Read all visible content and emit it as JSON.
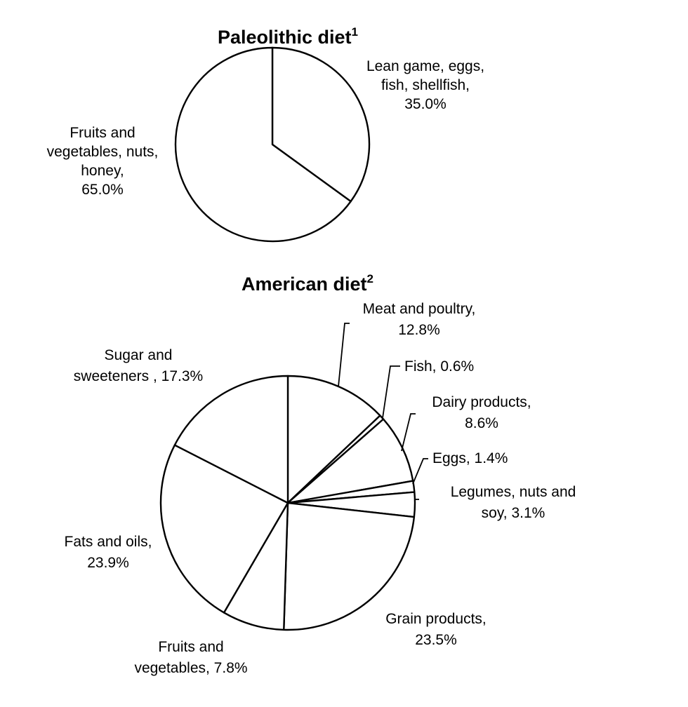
{
  "chart_data": [
    {
      "type": "pie",
      "title": "Paleolithic diet",
      "title_superscript": "1",
      "slices": [
        {
          "label_lines": [
            "Lean game, eggs,",
            "fish, shellfish,",
            "35.0%"
          ],
          "value": 35.0
        },
        {
          "label_lines": [
            "Fruits and",
            "vegetables, nuts,",
            "honey,",
            "65.0%"
          ],
          "value": 65.0
        }
      ]
    },
    {
      "type": "pie",
      "title": "American diet",
      "title_superscript": "2",
      "slices": [
        {
          "label_lines": [
            "Meat and poultry,",
            "12.8%"
          ],
          "value": 12.8
        },
        {
          "label_lines": [
            "Fish, 0.6%"
          ],
          "value": 0.6
        },
        {
          "label_lines": [
            "Dairy products,",
            "8.6%"
          ],
          "value": 8.6
        },
        {
          "label_lines": [
            "Eggs, 1.4%"
          ],
          "value": 1.4
        },
        {
          "label_lines": [
            "Legumes, nuts and",
            "soy, 3.1%"
          ],
          "value": 3.1
        },
        {
          "label_lines": [
            "Grain products,",
            "23.5%"
          ],
          "value": 23.5
        },
        {
          "label_lines": [
            "Fruits and",
            "vegetables, 7.8%"
          ],
          "value": 7.8
        },
        {
          "label_lines": [
            "Fats and oils,",
            "23.9%"
          ],
          "value": 23.9
        },
        {
          "label_lines": [
            "Sugar and",
            "sweeteners , 17.3%"
          ],
          "value": 17.3
        }
      ]
    }
  ]
}
